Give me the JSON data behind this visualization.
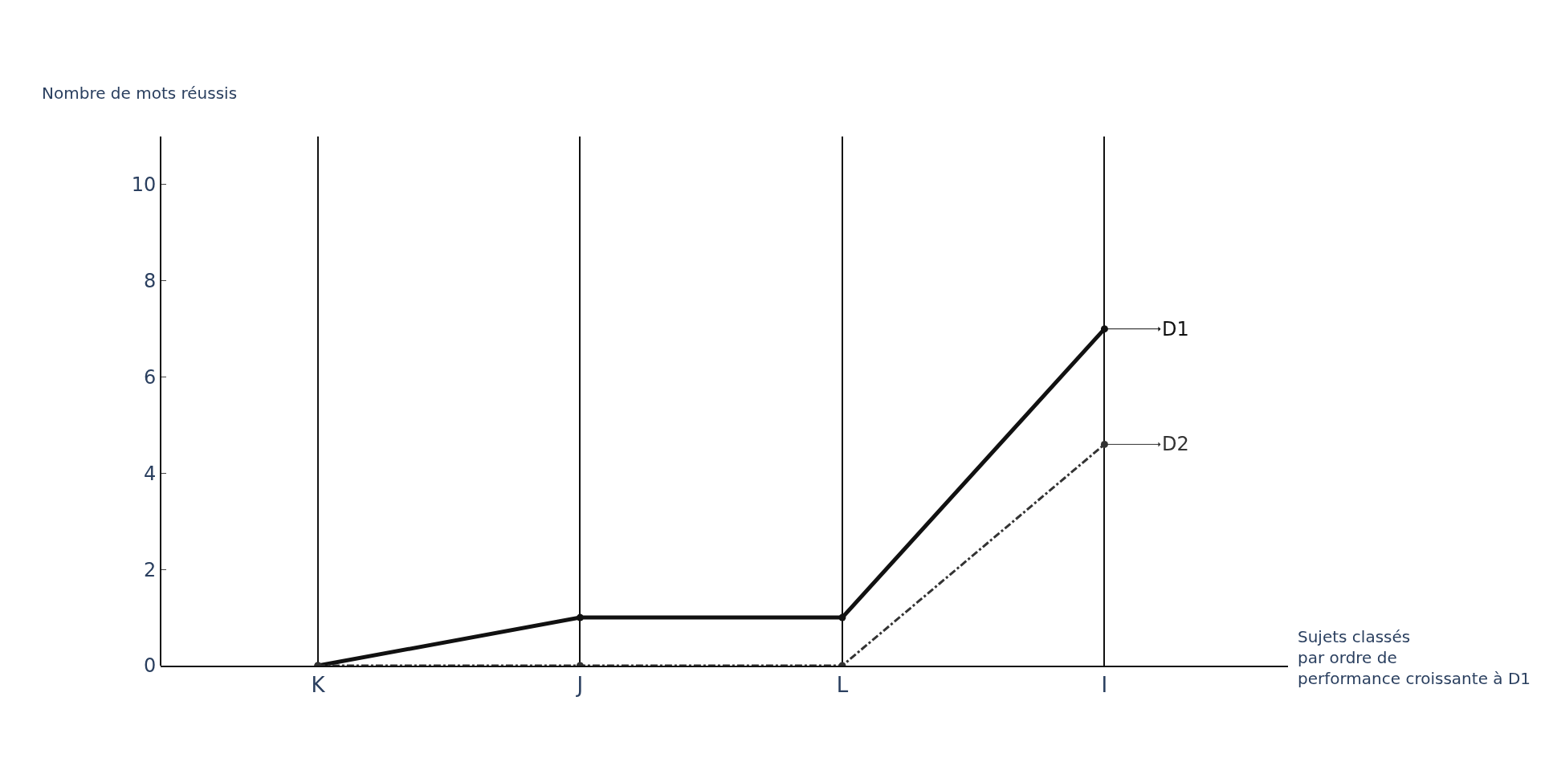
{
  "chart_data": {
    "type": "line",
    "xlabel": "Sujets classés par ordre de performance croissante à D1",
    "ylabel": "Nombre de mots réussis",
    "categories": [
      "K",
      "J",
      "L",
      "I"
    ],
    "series": [
      {
        "name": "D1",
        "color": "#111111",
        "values": [
          0,
          1,
          1,
          7
        ],
        "line_style": "solid"
      },
      {
        "name": "D2",
        "color": "#333333",
        "values": [
          0,
          0,
          0,
          4.6
        ],
        "line_style": "dashed"
      }
    ],
    "ylim": [
      0,
      11
    ],
    "yticks": [
      0,
      2,
      4,
      6,
      8,
      10
    ],
    "grid": "x",
    "legend": "right",
    "marker": "circle"
  }
}
